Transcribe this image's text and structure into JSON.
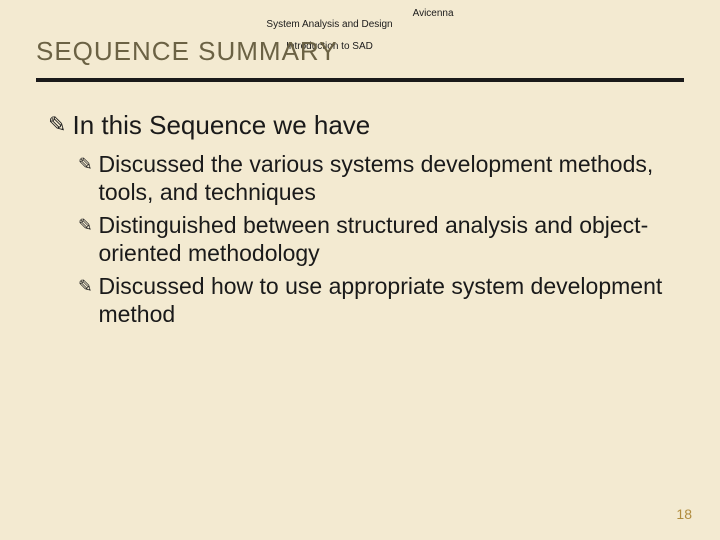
{
  "colors": {
    "background": "#f3ead1",
    "title_text": "#6b6244",
    "rule": "#1a1a1a",
    "body_text": "#1a1a1a",
    "meta_text": "#1a1a1a",
    "page_number": "#b08c3e"
  },
  "meta": {
    "left_line1": "System Analysis and Design",
    "left_line2": "Introduction to SAD",
    "right": "Avicenna"
  },
  "title": "SEQUENCE SUMMARY",
  "bullet_glyph": "✎",
  "content": {
    "lvl1": "In this Sequence we have",
    "lvl2": [
      "Discussed the various systems development methods, tools, and techniques",
      "Distinguished between structured analysis and object-oriented methodology",
      "Discussed how to use appropriate system development method"
    ]
  },
  "page_number": "18"
}
